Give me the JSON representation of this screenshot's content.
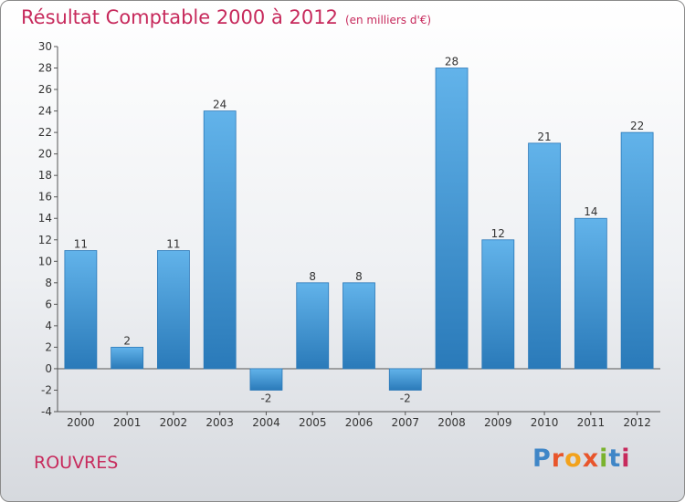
{
  "page": {
    "title": "Résultat Comptable 2000 à 2012",
    "subtitle": "(en milliers d'€)",
    "place": "ROUVRES",
    "logo_letters": [
      "P",
      "r",
      "o",
      "x",
      "i",
      "t",
      "i"
    ],
    "logo_colors": [
      "#3f86c7",
      "#e8552b",
      "#f2a21c",
      "#e8552b",
      "#7ab32e",
      "#3f86c7",
      "#c72a5c"
    ]
  },
  "colors": {
    "title": "#c72a5c",
    "bar_top": "#62b3ea",
    "bar_bottom": "#2a7ab9",
    "grid": "#cfcfcf"
  },
  "chart_data": {
    "type": "bar",
    "title": "Résultat Comptable 2000 à 2012",
    "ylabel": "(en milliers d'€)",
    "categories": [
      "2000",
      "2001",
      "2002",
      "2003",
      "2004",
      "2005",
      "2006",
      "2007",
      "2008",
      "2009",
      "2010",
      "2011",
      "2012"
    ],
    "values": [
      11,
      2,
      11,
      24,
      -2,
      8,
      8,
      -2,
      28,
      12,
      21,
      14,
      22
    ],
    "ylim": [
      -4,
      30
    ],
    "yticks": [
      -4,
      -2,
      0,
      2,
      4,
      6,
      8,
      10,
      12,
      14,
      16,
      18,
      20,
      22,
      24,
      26,
      28,
      30
    ],
    "grid": false
  }
}
